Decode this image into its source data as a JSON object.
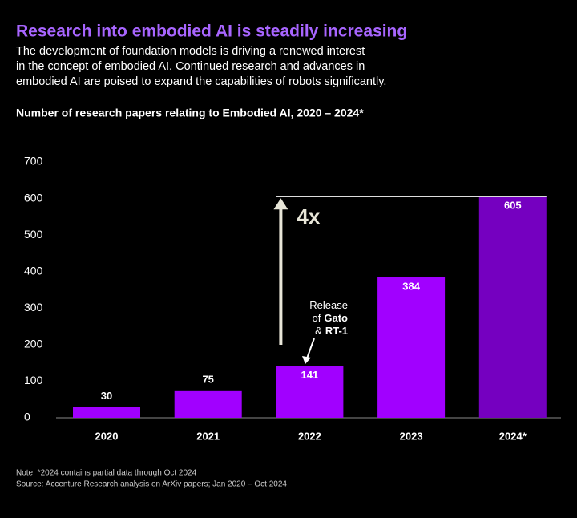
{
  "chart_data": {
    "type": "bar",
    "title": "Research into embodied AI is steadily increasing",
    "subtitle": [
      "The development of foundation models is driving a renewed interest",
      "in the concept of embodied AI. Continued research and advances in",
      "embodied AI are poised to expand the capabilities of robots significantly."
    ],
    "chart_title": "Number of research papers relating to Embodied AI, 2020 – 2024*",
    "categories": [
      "2020",
      "2021",
      "2022",
      "2023",
      "2024*"
    ],
    "values": [
      30,
      75,
      141,
      384,
      605
    ],
    "colors": [
      "#a100ff",
      "#a100ff",
      "#a100ff",
      "#a100ff",
      "#7500c0"
    ],
    "ylim": [
      0,
      700
    ],
    "yticks": [
      0,
      100,
      200,
      300,
      400,
      500,
      600,
      700
    ],
    "annotations": {
      "growth": "4x",
      "release": [
        [
          {
            "text": "Release",
            "bold": false
          }
        ],
        [
          {
            "text": "of",
            "bold": false
          },
          {
            "text": "Gato",
            "bold": true
          }
        ],
        [
          {
            "text": "&",
            "bold": false
          },
          {
            "text": "RT-1",
            "bold": true
          }
        ]
      ]
    },
    "notes": [
      "Note: *2024 contains partial data through Oct 2024",
      "Source: Accenture Research analysis on ArXiv papers; Jan 2020 – Oct 2024"
    ]
  }
}
